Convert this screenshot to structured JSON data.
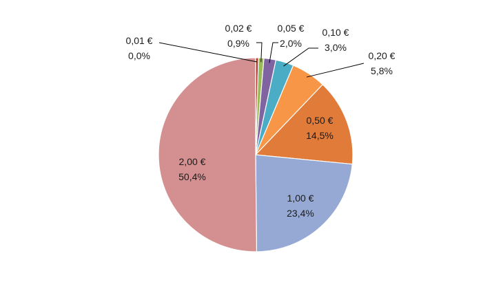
{
  "chart_data": {
    "type": "pie",
    "title": "",
    "start_angle_deg": 0,
    "direction": "clockwise",
    "slices": [
      {
        "category": "0,01 €",
        "percent_label": "0,0%",
        "value": 0.0,
        "color": "#b03a2e",
        "label_position": "outside"
      },
      {
        "category": "0,02 €",
        "percent_label": "0,9%",
        "value": 0.9,
        "color": "#9bbb59",
        "label_position": "outside"
      },
      {
        "category": "0,05 €",
        "percent_label": "2,0%",
        "value": 2.0,
        "color": "#8064a2",
        "label_position": "outside"
      },
      {
        "category": "0,10 €",
        "percent_label": "3,0%",
        "value": 3.0,
        "color": "#4bacc6",
        "label_position": "outside"
      },
      {
        "category": "0,20 €",
        "percent_label": "5,8%",
        "value": 5.8,
        "color": "#f79646",
        "label_position": "outside"
      },
      {
        "category": "0,50 €",
        "percent_label": "14,5%",
        "value": 14.5,
        "color": "#e07b39",
        "label_position": "inside"
      },
      {
        "category": "1,00 €",
        "percent_label": "23,4%",
        "value": 23.4,
        "color": "#95a9d4",
        "label_position": "inside"
      },
      {
        "category": "2,00 €",
        "percent_label": "50,4%",
        "value": 50.4,
        "color": "#d49090",
        "label_position": "inside"
      }
    ]
  }
}
